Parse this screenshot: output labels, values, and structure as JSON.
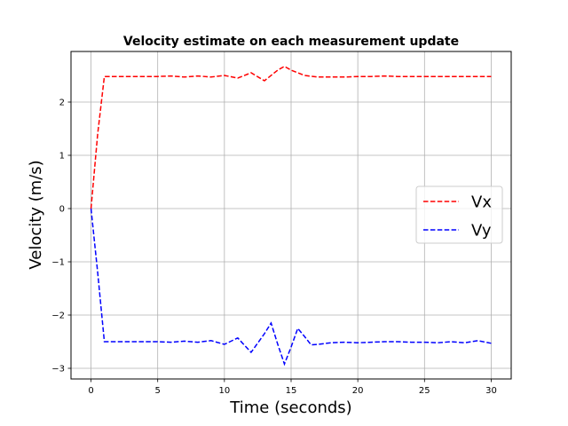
{
  "chart_data": {
    "type": "line",
    "title": "Velocity estimate on each measurement update",
    "xlabel": "Time (seconds)",
    "ylabel": "Velocity (m/s)",
    "xlim": [
      -1.5,
      31.5
    ],
    "ylim": [
      -3.2,
      2.95
    ],
    "xticks": [
      0,
      5,
      10,
      15,
      20,
      25,
      30
    ],
    "yticks": [
      -3,
      -2,
      -1,
      0,
      1,
      2
    ],
    "grid": true,
    "legend_position": "center-right",
    "series": [
      {
        "name": "Vx",
        "color": "#ff0000",
        "line_style": "dashed",
        "x": [
          0,
          0.5,
          1,
          2,
          3,
          4,
          5,
          6,
          7,
          8,
          9,
          10,
          11,
          12,
          13,
          14,
          14.5,
          15,
          16,
          17,
          18,
          19,
          20,
          21,
          22,
          23,
          24,
          25,
          26,
          27,
          28,
          29,
          30
        ],
        "y": [
          0,
          1.4,
          2.48,
          2.48,
          2.48,
          2.48,
          2.48,
          2.49,
          2.47,
          2.49,
          2.47,
          2.5,
          2.45,
          2.55,
          2.4,
          2.6,
          2.67,
          2.6,
          2.5,
          2.47,
          2.47,
          2.47,
          2.48,
          2.48,
          2.49,
          2.48,
          2.48,
          2.48,
          2.48,
          2.48,
          2.48,
          2.48,
          2.48
        ]
      },
      {
        "name": "Vy",
        "color": "#0000ff",
        "line_style": "dashed",
        "x": [
          0,
          0.5,
          1,
          2,
          3,
          4,
          5,
          6,
          7,
          8,
          9,
          10,
          11,
          12,
          13,
          13.5,
          14,
          14.5,
          15,
          15.5,
          16,
          16.5,
          17,
          18,
          19,
          20,
          21,
          22,
          23,
          24,
          25,
          26,
          27,
          28,
          29,
          30
        ],
        "y": [
          0,
          -1.2,
          -2.5,
          -2.5,
          -2.5,
          -2.5,
          -2.5,
          -2.51,
          -2.49,
          -2.51,
          -2.48,
          -2.55,
          -2.43,
          -2.7,
          -2.35,
          -2.15,
          -2.55,
          -2.92,
          -2.6,
          -2.25,
          -2.4,
          -2.56,
          -2.55,
          -2.52,
          -2.51,
          -2.52,
          -2.51,
          -2.5,
          -2.5,
          -2.51,
          -2.51,
          -2.52,
          -2.5,
          -2.52,
          -2.48,
          -2.53
        ]
      }
    ]
  }
}
